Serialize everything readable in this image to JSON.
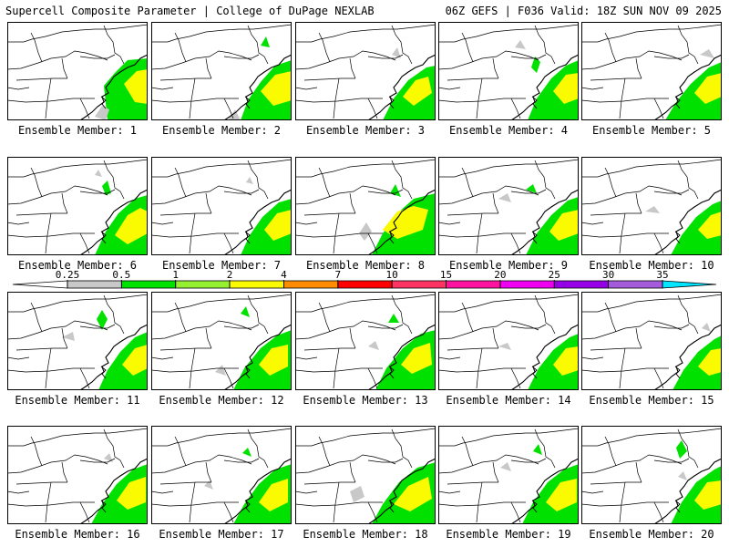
{
  "header": {
    "title": "Supercell Composite Parameter | College of DuPage NEXLAB",
    "run_info": "06Z GEFS | F036 Valid: 18Z SUN NOV 09 2025"
  },
  "legend": {
    "thresholds": [
      "0.25",
      "0.5",
      "1",
      "2",
      "4",
      "7",
      "10",
      "15",
      "20",
      "25",
      "30",
      "35"
    ],
    "colors": [
      "#c8c8c8",
      "#00e100",
      "#96f032",
      "#fafa00",
      "#ff8c00",
      "#ff0000",
      "#ff3264",
      "#ff14a0",
      "#f000f0",
      "#9600e6",
      "#a45cdc",
      "#00e6ff"
    ],
    "below_min_color": "#ffffff"
  },
  "panels": [
    {
      "member": 1,
      "label": "Ensemble Member: 1"
    },
    {
      "member": 2,
      "label": "Ensemble Member: 2"
    },
    {
      "member": 3,
      "label": "Ensemble Member: 3"
    },
    {
      "member": 4,
      "label": "Ensemble Member: 4"
    },
    {
      "member": 5,
      "label": "Ensemble Member: 5"
    },
    {
      "member": 6,
      "label": "Ensemble Member: 6"
    },
    {
      "member": 7,
      "label": "Ensemble Member: 7"
    },
    {
      "member": 8,
      "label": "Ensemble Member: 8"
    },
    {
      "member": 9,
      "label": "Ensemble Member: 9"
    },
    {
      "member": 10,
      "label": "Ensemble Member: 10"
    },
    {
      "member": 11,
      "label": "Ensemble Member: 11"
    },
    {
      "member": 12,
      "label": "Ensemble Member: 12"
    },
    {
      "member": 13,
      "label": "Ensemble Member: 13"
    },
    {
      "member": 14,
      "label": "Ensemble Member: 14"
    },
    {
      "member": 15,
      "label": "Ensemble Member: 15"
    },
    {
      "member": 16,
      "label": "Ensemble Member: 16"
    },
    {
      "member": 17,
      "label": "Ensemble Member: 17"
    },
    {
      "member": 18,
      "label": "Ensemble Member: 18"
    },
    {
      "member": 19,
      "label": "Ensemble Member: 19"
    },
    {
      "member": 20,
      "label": "Ensemble Member: 20"
    }
  ]
}
